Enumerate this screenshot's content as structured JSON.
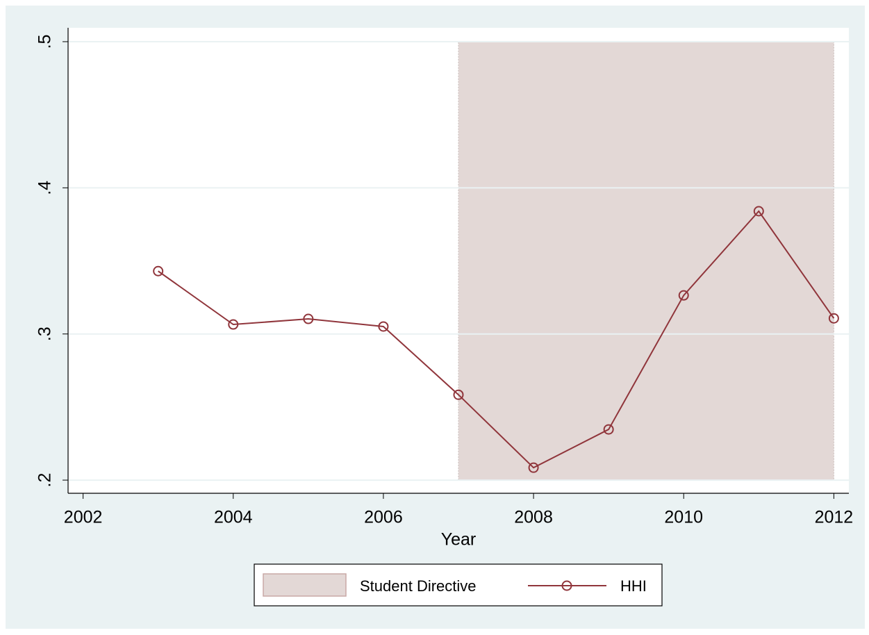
{
  "chart_data": {
    "type": "line",
    "x_label": "Year",
    "x": [
      2003,
      2004,
      2005,
      2006,
      2007,
      2008,
      2009,
      2010,
      2011,
      2012
    ],
    "series": [
      {
        "name": "HHI",
        "color": "#90353b",
        "values": [
          0.343,
          0.3065,
          0.3103,
          0.3051,
          0.2584,
          0.2085,
          0.2347,
          0.3264,
          0.384,
          0.3107
        ]
      }
    ],
    "band": {
      "name": "Student Directive",
      "color": "#e3d8d6",
      "x": [
        2007,
        2012
      ],
      "y": [
        0.2,
        0.5
      ]
    },
    "xlim": [
      2001.8,
      2012.2
    ],
    "ylim": [
      0.191,
      0.5095
    ],
    "xticks": [
      2002,
      2004,
      2006,
      2008,
      2010,
      2012
    ],
    "yticks": [
      {
        "value": 0.2,
        "label": ".2"
      },
      {
        "value": 0.3,
        "label": ".3"
      },
      {
        "value": 0.4,
        "label": ".4"
      },
      {
        "value": 0.5,
        "label": ".5"
      }
    ],
    "grid": true,
    "legend": "bottom"
  }
}
